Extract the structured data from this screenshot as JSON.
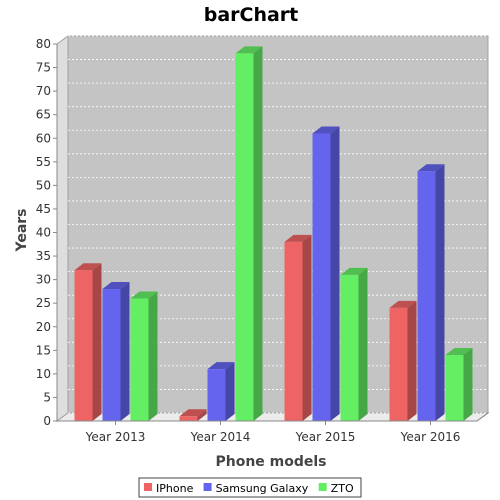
{
  "chart_data": {
    "type": "bar",
    "title": "barChart",
    "xlabel": "Phone models",
    "ylabel": "Years",
    "categories": [
      "Year 2013",
      "Year 2014",
      "Year 2015",
      "Year 2016"
    ],
    "series": [
      {
        "name": "IPhone",
        "values": [
          32,
          1,
          38,
          24
        ],
        "color": "#ee6464"
      },
      {
        "name": "Samsung Galaxy",
        "values": [
          28,
          11,
          61,
          53
        ],
        "color": "#6464ee"
      },
      {
        "name": "ZTO",
        "values": [
          26,
          78,
          31,
          14
        ],
        "color": "#64ee64"
      }
    ],
    "ylim": [
      0,
      80
    ],
    "yticks": [
      0,
      5,
      10,
      15,
      20,
      25,
      30,
      35,
      40,
      45,
      50,
      55,
      60,
      65,
      70,
      75,
      80
    ],
    "grid": true,
    "legend_position": "bottom"
  }
}
